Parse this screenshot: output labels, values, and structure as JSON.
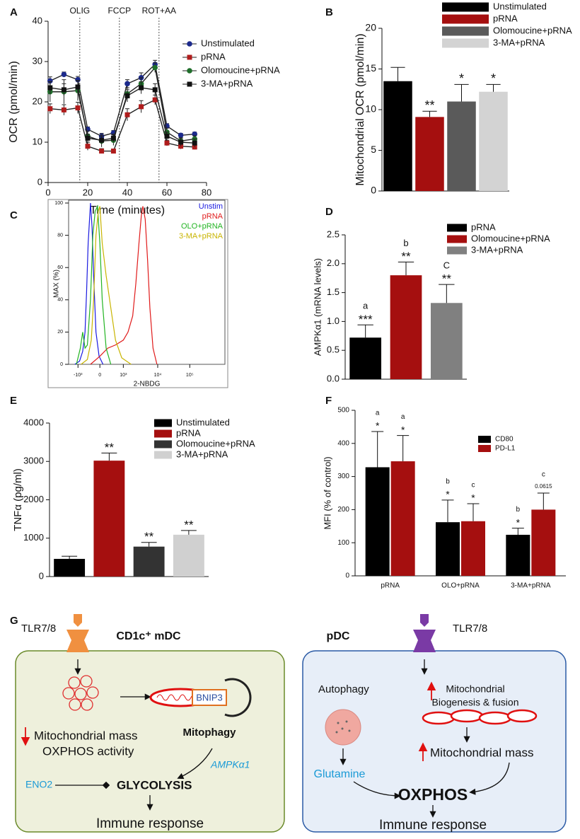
{
  "chart_data": [
    {
      "panel": "A",
      "type": "line",
      "xlabel": "Time (minutes)",
      "ylabel": "OCR (pmol/min)",
      "x": [
        1,
        8,
        15,
        20,
        27,
        33,
        40,
        47,
        54,
        60,
        67,
        74
      ],
      "xlim": [
        0,
        80
      ],
      "xticks": [
        0,
        20,
        40,
        60,
        80
      ],
      "ylim": [
        0,
        40
      ],
      "yticks": [
        0,
        10,
        20,
        30,
        40
      ],
      "line_color": "#222",
      "markers": true,
      "legend": "right",
      "vlines": [
        {
          "x": 16,
          "label": "OLIG"
        },
        {
          "x": 36,
          "label": "FCCP"
        },
        {
          "x": 56,
          "label": "ROT+AA"
        }
      ],
      "series": [
        {
          "name": "Unstimulated",
          "color": "#1c2a8c",
          "marker": "circle",
          "values": [
            25.2,
            26.8,
            25.5,
            13.2,
            11.5,
            12.3,
            24.5,
            26,
            29.3,
            14,
            11.7,
            12
          ],
          "errors": [
            1,
            0.6,
            0.8,
            0.6,
            0.7,
            0.6,
            1,
            1.2,
            1,
            0.6,
            0.5,
            0.5
          ]
        },
        {
          "name": "pRNA",
          "color": "#b01c1c",
          "marker": "square",
          "values": [
            18.3,
            18,
            18.5,
            9,
            7.8,
            7.8,
            16.8,
            18.8,
            20.5,
            9.8,
            9,
            8.8
          ],
          "errors": [
            1.2,
            1.3,
            1.4,
            1,
            0.6,
            0.5,
            1.5,
            1.5,
            1.2,
            0.7,
            0.7,
            0.6
          ]
        },
        {
          "name": "Olomoucine+pRNA",
          "color": "#1f6e2a",
          "marker": "circle",
          "values": [
            22.5,
            22.5,
            22.8,
            11.5,
            10.3,
            10.5,
            22,
            24.5,
            28.5,
            12.5,
            10.3,
            10.8
          ],
          "errors": [
            2.5,
            3,
            2.5,
            1.3,
            1.5,
            1.3,
            1.5,
            1.5,
            1.2,
            1,
            0.8,
            0.8
          ]
        },
        {
          "name": "3-MA+pRNA",
          "color": "#111111",
          "marker": "square",
          "values": [
            23.5,
            23,
            23.7,
            11,
            10.5,
            11,
            21.5,
            23.5,
            23,
            11.5,
            10,
            9.8
          ],
          "errors": [
            1.5,
            1.5,
            1.5,
            1,
            1,
            1,
            1.5,
            1.5,
            1.5,
            1,
            1,
            1
          ]
        }
      ]
    },
    {
      "panel": "B",
      "type": "bar",
      "ylabel": "Mitochondrial OCR (pmol/min)",
      "categories": [
        "Unstimulated",
        "pRNA",
        "Olomoucine+pRNA",
        "3-MA+pRNA"
      ],
      "colors": [
        "#000000",
        "#a50f0f",
        "#5a5a5a",
        "#d3d3d3"
      ],
      "values": [
        13.5,
        9.1,
        11.0,
        12.2
      ],
      "errors": [
        1.7,
        0.7,
        2.1,
        0.9
      ],
      "stars": [
        null,
        "**",
        "*",
        "*"
      ],
      "ylim": [
        0,
        20
      ],
      "yticks": [
        0,
        5,
        10,
        15,
        20
      ],
      "legend": "top"
    },
    {
      "panel": "C",
      "type": "line",
      "xlabel": "2-NBDG",
      "ylabel": "MAX (%)",
      "markers": false,
      "legend": "top-right",
      "xlim": [
        0,
        1000
      ],
      "xticks": [
        {
          "value": 60,
          "label": "-10³"
        },
        {
          "value": 200,
          "label": "0"
        },
        {
          "value": 350,
          "label": "10³"
        },
        {
          "value": 570,
          "label": "10⁴"
        },
        {
          "value": 775,
          "label": "10⁵"
        }
      ],
      "ylim": [
        0,
        100
      ],
      "yticks": [
        0,
        20,
        40,
        60,
        80,
        100
      ],
      "series": [
        {
          "name": "Unstim",
          "color": "#1a1ae0",
          "x": [
            40,
            70,
            90,
            105,
            115,
            125,
            140,
            150,
            160,
            175,
            195,
            220
          ],
          "values": [
            0,
            2,
            8,
            20,
            45,
            75,
            100,
            85,
            55,
            20,
            5,
            0
          ]
        },
        {
          "name": "pRNA",
          "color": "#e01a1a",
          "x": [
            140,
            200,
            250,
            300,
            350,
            380,
            410,
            430,
            450,
            465,
            475,
            490,
            505,
            520,
            540,
            565
          ],
          "values": [
            0,
            5,
            10,
            12,
            15,
            20,
            30,
            50,
            75,
            92,
            98,
            90,
            65,
            35,
            10,
            0
          ]
        },
        {
          "name": "OLO+pRNA",
          "color": "#22b422",
          "x": [
            50,
            75,
            90,
            105,
            120,
            140,
            155,
            170,
            185,
            200,
            215,
            240,
            270
          ],
          "values": [
            0,
            10,
            20,
            10,
            12,
            40,
            80,
            95,
            98,
            75,
            40,
            10,
            0
          ]
        },
        {
          "name": "3-MA+pRNA",
          "color": "#c8b400",
          "x": [
            80,
            120,
            145,
            160,
            175,
            190,
            200,
            215,
            240,
            270,
            300,
            340,
            400
          ],
          "values": [
            0,
            3,
            15,
            40,
            80,
            95,
            98,
            75,
            55,
            35,
            15,
            4,
            0
          ]
        }
      ]
    },
    {
      "panel": "D",
      "type": "bar",
      "ylabel": "AMPKα1 (mRNA levels)",
      "categories": [
        "pRNA",
        "Olomoucine+pRNA",
        "3-MA+pRNA"
      ],
      "colors": [
        "#000000",
        "#a50f0f",
        "#808080"
      ],
      "values": [
        0.72,
        1.8,
        1.32
      ],
      "errors": [
        0.22,
        0.23,
        0.32
      ],
      "stars": [
        "***",
        "**",
        "**"
      ],
      "letters": [
        "a",
        "b",
        "C"
      ],
      "ylim": [
        0,
        2.5
      ],
      "yticks": [
        {
          "value": 0,
          "label": "0.0"
        },
        0.5,
        {
          "value": 1,
          "label": "1.0"
        },
        1.5,
        {
          "value": 2,
          "label": "2.0"
        },
        2.5
      ],
      "legend": "top-right"
    },
    {
      "panel": "E",
      "type": "bar",
      "ylabel": "TNFα (pg/ml)",
      "categories": [
        "Unstimulated",
        "pRNA",
        "Olomoucine+pRNA",
        "3-MA+pRNA"
      ],
      "colors": [
        "#000000",
        "#a50f0f",
        "#333333",
        "#d0d0d0"
      ],
      "values": [
        460,
        3020,
        780,
        1090
      ],
      "errors": [
        70,
        200,
        110,
        110
      ],
      "stars": [
        null,
        "**",
        "**",
        "**"
      ],
      "ylim": [
        0,
        4000
      ],
      "yticks": [
        0,
        1000,
        2000,
        3000,
        4000
      ],
      "legend": "top-right"
    },
    {
      "panel": "F",
      "type": "bar",
      "ylabel": "MFI (% of control)",
      "categories": [
        "pRNA",
        "OLO+pRNA",
        "3-MA+pRNA"
      ],
      "ylim": [
        0,
        500
      ],
      "yticks": [
        0,
        100,
        200,
        300,
        400,
        500
      ],
      "legend": "top-right",
      "series": [
        {
          "name": "CD80",
          "color": "#000000",
          "values": [
            328,
            162,
            124
          ],
          "errors": [
            108,
            67,
            20
          ],
          "stars": [
            "*",
            "*",
            "*"
          ],
          "letters": [
            "a",
            "b",
            "b"
          ]
        },
        {
          "name": "PD-L1",
          "color": "#a50f0f",
          "values": [
            346,
            165,
            200
          ],
          "errors": [
            78,
            53,
            50
          ],
          "stars": [
            "*",
            "*",
            "0.0615"
          ],
          "letters": [
            "a",
            "c",
            "c"
          ]
        }
      ]
    }
  ],
  "diagram": {
    "panel": "G",
    "mdc": {
      "receptor": "TLR7/8",
      "title": "CD1c⁺ mDC",
      "mito_mass": "Mitochondrial mass",
      "oxphos_activity": "OXPHOS activity",
      "bnip3": "BNIP3",
      "mitophagy": "Mitophagy",
      "ampk": "AMPKα1",
      "eno2": "ENO2",
      "glycolysis": "GLYCOLYSIS",
      "response": "Immune response"
    },
    "pdc": {
      "title": "pDC",
      "receptor": "TLR7/8",
      "autophagy": "Autophagy",
      "mito1": "Mitochondrial",
      "mito2": "Biogenesis & fusion",
      "mito_mass": "Mitochondrial mass",
      "glutamine": "Glutamine",
      "oxphos": "OXPHOS",
      "response": "Immune response"
    }
  }
}
